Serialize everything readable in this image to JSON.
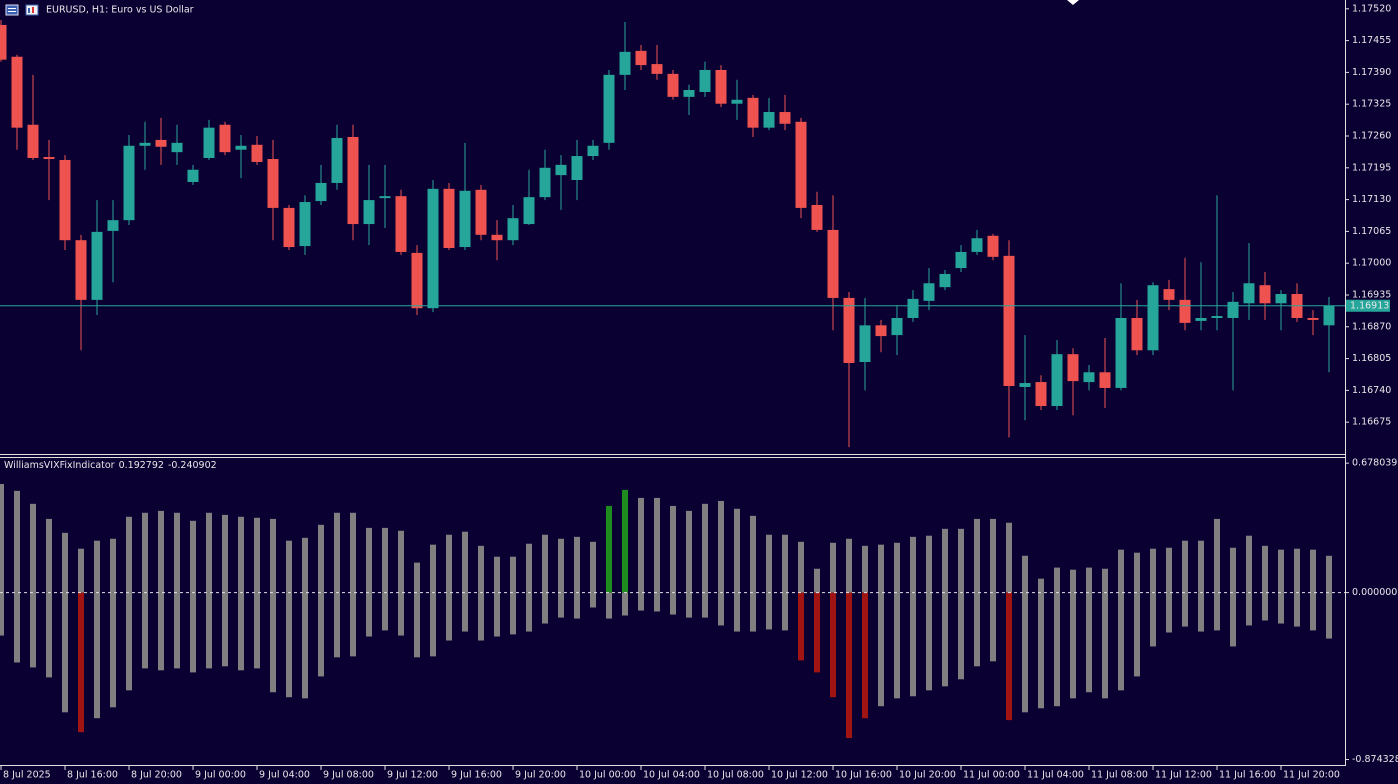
{
  "chart_data": [
    {
      "type": "candlestick",
      "title": "EURUSD, H1:  Euro vs US Dollar",
      "categories": [
        "8 Jul 2025",
        null,
        null,
        null,
        "8 Jul 16:00",
        null,
        null,
        null,
        "8 Jul 20:00",
        null,
        null,
        null,
        "9 Jul 00:00",
        null,
        null,
        null,
        "9 Jul 04:00",
        null,
        null,
        null,
        "9 Jul 08:00",
        null,
        null,
        null,
        "9 Jul 12:00",
        null,
        null,
        null,
        "9 Jul 16:00",
        null,
        null,
        null,
        "9 Jul 20:00",
        null,
        null,
        null,
        "10 Jul 00:00",
        null,
        null,
        null,
        "10 Jul 04:00",
        null,
        null,
        null,
        "10 Jul 08:00",
        null,
        null,
        null,
        "10 Jul 12:00",
        null,
        null,
        null,
        "10 Jul 16:00",
        null,
        null,
        null,
        "10 Jul 20:00",
        null,
        null,
        null,
        "11 Jul 00:00",
        null,
        null,
        null,
        "11 Jul 04:00",
        null,
        null,
        null,
        "11 Jul 08:00",
        null,
        null,
        null,
        "11 Jul 12:00",
        null,
        null,
        null,
        "11 Jul 16:00",
        null,
        null,
        null,
        "11 Jul 20:00",
        null,
        null,
        null
      ],
      "open": [
        1.17487,
        1.17422,
        1.17283,
        1.17217,
        1.17211,
        1.17047,
        1.16925,
        1.17066,
        1.17088,
        1.1724,
        1.17252,
        1.17227,
        1.17166,
        1.17215,
        1.17283,
        1.17232,
        1.17242,
        1.17213,
        1.17113,
        1.17035,
        1.17127,
        1.17164,
        1.17258,
        1.1708,
        1.17133,
        1.17137,
        1.17021,
        1.16908,
        1.17152,
        1.17033,
        1.1715,
        1.17058,
        1.17047,
        1.1708,
        1.17135,
        1.1718,
        1.1717,
        1.17219,
        1.17246,
        1.17385,
        1.17434,
        1.17407,
        1.17387,
        1.1734,
        1.1735,
        1.17395,
        1.17326,
        1.17338,
        1.17277,
        1.17309,
        1.17289,
        1.17119,
        1.17068,
        1.16929,
        1.16798,
        1.16873,
        1.16853,
        1.16888,
        1.16923,
        1.16951,
        1.1699,
        1.17023,
        1.17056,
        1.17015,
        1.16747,
        1.16757,
        1.16708,
        1.16814,
        1.16757,
        1.16777,
        1.16745,
        1.16888,
        1.16822,
        1.16947,
        1.16925,
        1.16882,
        1.16888,
        1.16888,
        1.16918,
        1.16955,
        1.16918,
        1.16937,
        1.16888,
        1.16873
      ],
      "high": [
        1.17497,
        1.17426,
        1.17385,
        1.17252,
        1.17221,
        1.17058,
        1.17129,
        1.17129,
        1.17262,
        1.17289,
        1.17297,
        1.17283,
        1.17201,
        1.17293,
        1.17289,
        1.17262,
        1.1726,
        1.17252,
        1.17119,
        1.17139,
        1.17201,
        1.17283,
        1.17283,
        1.17201,
        1.17201,
        1.1715,
        1.17037,
        1.1717,
        1.17164,
        1.17246,
        1.1716,
        1.17088,
        1.17119,
        1.17191,
        1.17232,
        1.17221,
        1.17252,
        1.17252,
        1.17395,
        1.17493,
        1.17446,
        1.17446,
        1.17395,
        1.17365,
        1.17412,
        1.17405,
        1.17375,
        1.17344,
        1.17338,
        1.17344,
        1.17297,
        1.17146,
        1.17139,
        1.16941,
        1.16929,
        1.16884,
        1.16914,
        1.16945,
        1.1699,
        1.16986,
        1.17037,
        1.17068,
        1.1706,
        1.17047,
        1.16853,
        1.16771,
        1.16843,
        1.16826,
        1.16792,
        1.16847,
        1.16959,
        1.16925,
        1.16961,
        1.16966,
        1.17011,
        1.17002,
        1.17139,
        1.16941,
        1.17041,
        1.16982,
        1.16945,
        1.16959,
        1.16904,
        1.16931
      ],
      "low": [
        1.17412,
        1.17232,
        1.17211,
        1.17129,
        1.17027,
        1.16822,
        1.16894,
        1.16961,
        1.17078,
        1.17191,
        1.17201,
        1.17201,
        1.1716,
        1.17211,
        1.17221,
        1.17174,
        1.17201,
        1.17047,
        1.17027,
        1.17017,
        1.17119,
        1.1715,
        1.17047,
        1.17037,
        1.17072,
        1.17017,
        1.16894,
        1.169,
        1.17027,
        1.17027,
        1.17047,
        1.17006,
        1.17037,
        1.17078,
        1.17129,
        1.17109,
        1.17129,
        1.17211,
        1.17232,
        1.17354,
        1.17395,
        1.17375,
        1.17334,
        1.17303,
        1.1734,
        1.17319,
        1.17293,
        1.17258,
        1.17272,
        1.17272,
        1.17092,
        1.17064,
        1.16863,
        1.16624,
        1.1674,
        1.16818,
        1.16812,
        1.1688,
        1.16904,
        1.16945,
        1.16982,
        1.17017,
        1.17006,
        1.16644,
        1.16679,
        1.167,
        1.167,
        1.16689,
        1.1674,
        1.16704,
        1.1674,
        1.16812,
        1.16812,
        1.16904,
        1.16863,
        1.16863,
        1.16863,
        1.1674,
        1.16884,
        1.16884,
        1.16863,
        1.1688,
        1.16853,
        1.16777
      ],
      "close": [
        1.17416,
        1.17277,
        1.17215,
        1.17213,
        1.17047,
        1.16925,
        1.17064,
        1.17088,
        1.1724,
        1.17246,
        1.17238,
        1.17246,
        1.17191,
        1.17277,
        1.17227,
        1.1724,
        1.17207,
        1.17113,
        1.17033,
        1.17125,
        1.17164,
        1.17256,
        1.1708,
        1.17129,
        1.17137,
        1.17023,
        1.16908,
        1.17152,
        1.17031,
        1.17148,
        1.17058,
        1.17047,
        1.17092,
        1.17135,
        1.17195,
        1.17201,
        1.17219,
        1.1724,
        1.17385,
        1.17432,
        1.17405,
        1.17387,
        1.1734,
        1.17354,
        1.17395,
        1.17326,
        1.17334,
        1.17277,
        1.17309,
        1.17285,
        1.17113,
        1.17068,
        1.16929,
        1.16796,
        1.16873,
        1.16851,
        1.16888,
        1.16927,
        1.16959,
        1.16978,
        1.17023,
        1.17051,
        1.17013,
        1.16749,
        1.16755,
        1.16708,
        1.16814,
        1.16759,
        1.16777,
        1.16745,
        1.16888,
        1.16822,
        1.16955,
        1.16925,
        1.16878,
        1.16888,
        1.16892,
        1.16921,
        1.16959,
        1.16918,
        1.16937,
        1.16888,
        1.16884,
        1.16913
      ],
      "up_color": "#26a69a",
      "down_color": "#ef5350",
      "current_price": 1.16913,
      "current_price_color": "#26a69a",
      "ylim": [
        1.16612,
        1.17538
      ],
      "yticks": [
        {
          "value": 1.1752,
          "label": "1.17520"
        },
        1.17455,
        {
          "value": 1.1739,
          "label": "1.17390"
        },
        1.17325,
        {
          "value": 1.1726,
          "label": "1.17260"
        },
        1.17195,
        {
          "value": 1.1713,
          "label": "1.17130"
        },
        1.17065,
        {
          "value": 1.17,
          "label": "1.17000"
        },
        1.16935,
        {
          "value": 1.1687,
          "label": "1.16870"
        },
        1.16805,
        {
          "value": 1.1674,
          "label": "1.16740"
        },
        1.16675
      ],
      "grid": false
    },
    {
      "type": "bar",
      "title": "WilliamsVIXFixIndicator",
      "series": [
        {
          "color": "#808080",
          "highlight_color": "#1e8c1e",
          "highlight": [
            38,
            39
          ],
          "values": [
            0.569,
            0.533,
            0.465,
            0.386,
            0.313,
            0.23,
            0.272,
            0.282,
            0.397,
            0.418,
            0.428,
            0.418,
            0.376,
            0.418,
            0.407,
            0.397,
            0.392,
            0.386,
            0.272,
            0.287,
            0.355,
            0.418,
            0.418,
            0.339,
            0.339,
            0.324,
            0.157,
            0.251,
            0.303,
            0.319,
            0.245,
            0.188,
            0.188,
            0.256,
            0.303,
            0.282,
            0.292,
            0.266,
            0.454,
            0.538,
            0.496,
            0.496,
            0.454,
            0.428,
            0.465,
            0.48,
            0.439,
            0.402,
            0.303,
            0.303,
            0.266,
            0.125,
            0.261,
            0.282,
            0.245,
            0.251,
            0.261,
            0.292,
            0.298,
            0.334,
            0.334,
            0.386,
            0.386,
            0.366,
            0.193,
            0.073,
            0.131,
            0.12,
            0.131,
            0.125,
            0.225,
            0.209,
            0.23,
            0.235,
            0.272,
            0.272,
            0.386,
            0.235,
            0.298,
            0.245,
            0.225,
            0.23,
            0.225,
            0.192792
          ]
        },
        {
          "color": "#808080",
          "highlight_color": "#a01414",
          "highlight": [
            5,
            50,
            51,
            52,
            53,
            54,
            63
          ],
          "values": [
            -0.225,
            -0.366,
            -0.392,
            -0.444,
            -0.627,
            -0.731,
            -0.658,
            -0.601,
            -0.512,
            -0.397,
            -0.407,
            -0.397,
            -0.418,
            -0.397,
            -0.386,
            -0.407,
            -0.397,
            -0.522,
            -0.548,
            -0.554,
            -0.439,
            -0.339,
            -0.334,
            -0.23,
            -0.198,
            -0.225,
            -0.339,
            -0.334,
            -0.251,
            -0.204,
            -0.251,
            -0.23,
            -0.219,
            -0.204,
            -0.162,
            -0.131,
            -0.136,
            -0.078,
            -0.136,
            -0.12,
            -0.094,
            -0.099,
            -0.115,
            -0.131,
            -0.131,
            -0.172,
            -0.204,
            -0.204,
            -0.193,
            -0.198,
            -0.355,
            -0.418,
            -0.548,
            -0.762,
            -0.658,
            -0.595,
            -0.554,
            -0.543,
            -0.512,
            -0.491,
            -0.454,
            -0.386,
            -0.36,
            -0.668,
            -0.627,
            -0.606,
            -0.595,
            -0.554,
            -0.522,
            -0.554,
            -0.512,
            -0.439,
            -0.282,
            -0.209,
            -0.178,
            -0.204,
            -0.198,
            -0.282,
            -0.172,
            -0.146,
            -0.162,
            -0.178,
            -0.198,
            -0.240902
          ]
        }
      ],
      "ylim": [
        -0.903,
        0.705
      ],
      "yticks": [
        0.678039,
        {
          "value": 0,
          "label": "0.000000"
        },
        -0.874328
      ],
      "zero_line": true,
      "grid": false
    }
  ]
}
